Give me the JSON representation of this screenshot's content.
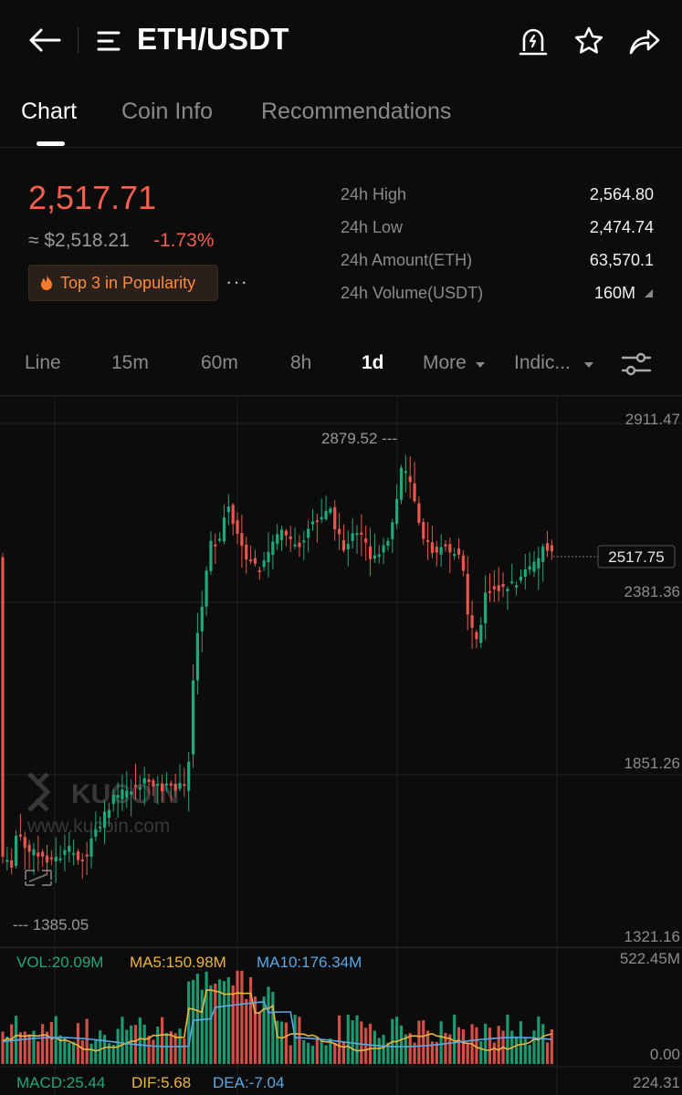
{
  "header": {
    "title": "ETH/USDT"
  },
  "tabs": [
    {
      "label": "Chart"
    },
    {
      "label": "Coin Info"
    },
    {
      "label": "Recommendations"
    }
  ],
  "price": {
    "last": "2,517.71",
    "approx": "≈ $2,518.21",
    "change": "-1.73%",
    "badge": "Top 3 in Popularity",
    "more": "···"
  },
  "stats": [
    {
      "label": "24h High",
      "value": "2,564.80"
    },
    {
      "label": "24h Low",
      "value": "2,474.74"
    },
    {
      "label": "24h Amount(ETH)",
      "value": "63,570.1"
    },
    {
      "label": "24h Volume(USDT)",
      "value": "160M"
    }
  ],
  "timeframes": [
    "Line",
    "15m",
    "60m",
    "8h",
    "1d",
    "More",
    "Indic..."
  ],
  "chart": {
    "price_axis": [
      "2911.47",
      "2381.36",
      "1851.26",
      "1321.16"
    ],
    "current_price": "2517.75",
    "high_marker": "2879.52 ---",
    "low_marker": "--- 1385.05",
    "vol_axis_top": "522.45M",
    "vol_axis_bottom": "0.00",
    "macd_axis": "224.31",
    "watermark_brand": "KUCOIN",
    "watermark_url": "www.kucoin.com"
  },
  "indicators": {
    "vol": "VOL:20.09M",
    "ma5": "MA5:150.98M",
    "ma10": "MA10:176.34M",
    "macd": "MACD:25.44",
    "dif": "DIF:5.68",
    "dea": "DEA:-7.04"
  },
  "colors": {
    "up": "#1fa97a",
    "down": "#e8564d",
    "ma5": "#f0b43c",
    "ma10": "#5aa8e6",
    "accent_price": "#f2604f"
  }
}
